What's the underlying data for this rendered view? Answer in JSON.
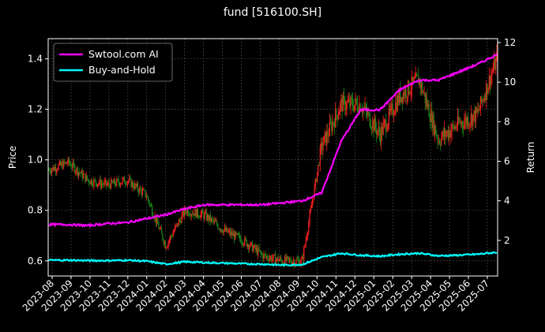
{
  "title": "fund [516100.SH]",
  "chart_data": {
    "type": "line",
    "title": "fund [516100.SH]",
    "xlabel": "",
    "ylabel": "Price",
    "y2label": "Return",
    "ylim": [
      0.54,
      1.48
    ],
    "y2lim": [
      0.2,
      12.2
    ],
    "y_ticks": [
      0.6,
      0.8,
      1.0,
      1.2,
      1.4
    ],
    "y_tick_labels": [
      "0.6",
      "0.8",
      "1.0",
      "1.2",
      "1.4"
    ],
    "y2_ticks": [
      2,
      4,
      6,
      8,
      10,
      12
    ],
    "y2_tick_labels": [
      "2",
      "4",
      "6",
      "8",
      "10",
      "12"
    ],
    "x_tick_labels": [
      "2023-08",
      "2023-09",
      "2023-10",
      "2023-11",
      "2023-12",
      "2024-01",
      "2024-02",
      "2024-03",
      "2024-04",
      "2024-05",
      "2024-06",
      "2024-07",
      "2024-08",
      "2024-09",
      "2024-10",
      "2024-11",
      "2024-12",
      "2025-01",
      "2025-02",
      "2025-03",
      "2025-04",
      "2025-05",
      "2025-06",
      "2025-07"
    ],
    "grid": true,
    "legend_position": "upper-left",
    "legend": [
      "Swtool.com AI",
      "Buy-and-Hold"
    ],
    "colors": {
      "ai": "#ff00ff",
      "bh": "#00ffff",
      "up": "#ff2020",
      "down": "#1a8c1a",
      "background": "#000000",
      "grid": "#555555"
    },
    "price_path": {
      "months": [
        "2023-08",
        "2023-09",
        "2023-10",
        "2023-11",
        "2023-12",
        "2024-01",
        "2024-02",
        "2024-03",
        "2024-04",
        "2024-05",
        "2024-06",
        "2024-07",
        "2024-08",
        "2024-09",
        "2024-10",
        "2024-11",
        "2024-12",
        "2025-01",
        "2025-02",
        "2025-03",
        "2025-04",
        "2025-05",
        "2025-06",
        "2025-07"
      ],
      "close": [
        0.96,
        0.99,
        0.92,
        0.9,
        0.92,
        0.86,
        0.66,
        0.8,
        0.78,
        0.72,
        0.68,
        0.62,
        0.6,
        0.6,
        1.05,
        1.22,
        1.22,
        1.1,
        1.25,
        1.32,
        1.08,
        1.14,
        1.18,
        1.4
      ]
    },
    "series": [
      {
        "name": "Swtool.com AI",
        "x": [
          "2023-08",
          "2023-09",
          "2023-10",
          "2023-11",
          "2023-12",
          "2024-01",
          "2024-02",
          "2024-03",
          "2024-04",
          "2024-05",
          "2024-06",
          "2024-07",
          "2024-08",
          "2024-09",
          "2024-10",
          "2024-11",
          "2024-12",
          "2025-01",
          "2025-02",
          "2025-03",
          "2025-04",
          "2025-05",
          "2025-06",
          "2025-07"
        ],
        "values": [
          2.8,
          2.8,
          2.75,
          2.85,
          2.9,
          3.1,
          3.3,
          3.6,
          3.8,
          3.8,
          3.8,
          3.8,
          3.9,
          4.0,
          4.4,
          7.0,
          8.6,
          8.6,
          9.6,
          10.1,
          10.1,
          10.5,
          10.9,
          11.4
        ]
      },
      {
        "name": "Buy-and-Hold",
        "x": [
          "2023-08",
          "2023-09",
          "2023-10",
          "2023-11",
          "2023-12",
          "2024-01",
          "2024-02",
          "2024-03",
          "2024-04",
          "2024-05",
          "2024-06",
          "2024-07",
          "2024-08",
          "2024-09",
          "2024-10",
          "2024-11",
          "2024-12",
          "2025-01",
          "2025-02",
          "2025-03",
          "2025-04",
          "2025-05",
          "2025-06",
          "2025-07"
        ],
        "values": [
          1.0,
          1.0,
          0.98,
          0.98,
          1.0,
          0.95,
          0.8,
          0.92,
          0.88,
          0.85,
          0.82,
          0.8,
          0.75,
          0.78,
          1.15,
          1.35,
          1.25,
          1.2,
          1.3,
          1.35,
          1.22,
          1.25,
          1.3,
          1.4
        ]
      }
    ]
  }
}
